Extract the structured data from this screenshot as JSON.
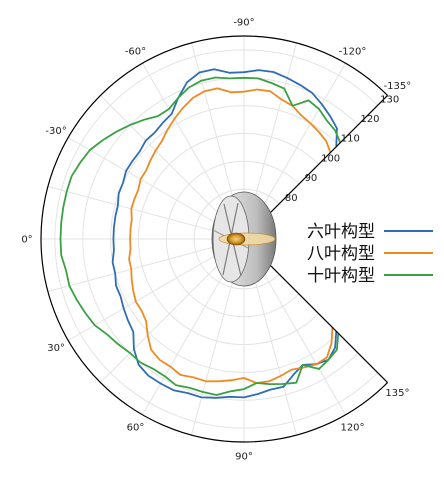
{
  "chart_data": {
    "type": "line",
    "subtype": "polar",
    "theta_unit": "deg",
    "theta_range": [
      -135,
      135
    ],
    "theta_tick_labels": [
      {
        "theta": -135,
        "label": "-135°"
      },
      {
        "theta": -120,
        "label": "-120°"
      },
      {
        "theta": -90,
        "label": "-90°"
      },
      {
        "theta": -60,
        "label": "-60°"
      },
      {
        "theta": -30,
        "label": "-30°"
      },
      {
        "theta": 0,
        "label": "0°"
      },
      {
        "theta": 30,
        "label": "30°"
      },
      {
        "theta": 60,
        "label": "60°"
      },
      {
        "theta": 90,
        "label": "90°"
      },
      {
        "theta": 120,
        "label": "120°"
      },
      {
        "theta": 135,
        "label": "135°"
      }
    ],
    "r_range": [
      70,
      135
    ],
    "r_ticks": [
      80,
      90,
      100,
      110,
      120,
      130
    ],
    "r_tick_labels": [
      "80",
      "90",
      "100",
      "110",
      "120",
      "130"
    ],
    "grid": true,
    "legend_position": "right",
    "series": [
      {
        "name": "六叶构型",
        "color": "#2f6eb5",
        "theta": [
          -135,
          -130,
          -125,
          -120,
          -115,
          -110,
          -105,
          -100,
          -95,
          -90,
          -85,
          -80,
          -75,
          -70,
          -65,
          -60,
          -55,
          -50,
          -45,
          -40,
          -35,
          -30,
          -25,
          -20,
          -15,
          -10,
          -5,
          0,
          5,
          10,
          15,
          20,
          25,
          30,
          35,
          40,
          45,
          50,
          55,
          60,
          65,
          70,
          75,
          80,
          85,
          90,
          95,
          100,
          105,
          110,
          115,
          120,
          125,
          130,
          135
        ],
        "r": [
          109,
          114,
          116,
          118,
          120,
          121,
          122,
          123,
          123,
          122,
          122,
          124,
          124,
          122,
          118,
          114,
          113,
          112,
          112,
          111,
          111,
          111,
          110,
          110,
          109,
          109,
          109,
          109,
          109,
          110,
          110,
          111,
          111,
          112,
          113,
          114,
          118,
          121,
          122,
          122,
          122,
          121,
          121,
          120,
          119,
          119,
          118,
          117,
          117,
          114,
          112,
          114,
          115,
          113,
          109
        ]
      },
      {
        "name": "八叶构型",
        "color": "#ef8a22",
        "theta": [
          -135,
          -130,
          -125,
          -120,
          -115,
          -110,
          -105,
          -100,
          -95,
          -90,
          -85,
          -80,
          -75,
          -70,
          -65,
          -60,
          -55,
          -50,
          -45,
          -40,
          -35,
          -30,
          -25,
          -20,
          -15,
          -10,
          -5,
          0,
          5,
          10,
          15,
          20,
          25,
          30,
          35,
          40,
          45,
          50,
          55,
          60,
          65,
          70,
          75,
          80,
          85,
          90,
          95,
          100,
          105,
          110,
          115,
          120,
          125,
          130,
          135
        ],
        "r": [
          106,
          108,
          109,
          110,
          111,
          113,
          114,
          116,
          116,
          115,
          115,
          117,
          117,
          116,
          114,
          112,
          110,
          108,
          107,
          106,
          105,
          105,
          104,
          104,
          104,
          103,
          103,
          103,
          103,
          104,
          104,
          105,
          106,
          107,
          107,
          108,
          111,
          114,
          115,
          115,
          116,
          115,
          115,
          114,
          113,
          112,
          114,
          114,
          113,
          112,
          113,
          114,
          114,
          111,
          107
        ]
      },
      {
        "name": "十叶构型",
        "color": "#3aa143",
        "theta": [
          -135,
          -130,
          -125,
          -120,
          -115,
          -110,
          -105,
          -100,
          -95,
          -90,
          -85,
          -80,
          -75,
          -70,
          -65,
          -60,
          -55,
          -50,
          -45,
          -40,
          -35,
          -30,
          -25,
          -20,
          -15,
          -10,
          -5,
          0,
          5,
          10,
          15,
          20,
          25,
          30,
          35,
          40,
          45,
          50,
          55,
          60,
          65,
          70,
          75,
          80,
          85,
          90,
          95,
          100,
          105,
          110,
          115,
          120,
          125,
          130,
          135
        ],
        "r": [
          111,
          113,
          114,
          116,
          117,
          113,
          118,
          119,
          120,
          120,
          120,
          121,
          121,
          120,
          118,
          116,
          116,
          118,
          120,
          122,
          124,
          126,
          127,
          128,
          128,
          128,
          128,
          128,
          128,
          127,
          127,
          126,
          125,
          124,
          122,
          121,
          120,
          120,
          119,
          119,
          120,
          119,
          119,
          119,
          117,
          116,
          114,
          115,
          116,
          117,
          112,
          116,
          115,
          114,
          110
        ]
      }
    ]
  }
}
